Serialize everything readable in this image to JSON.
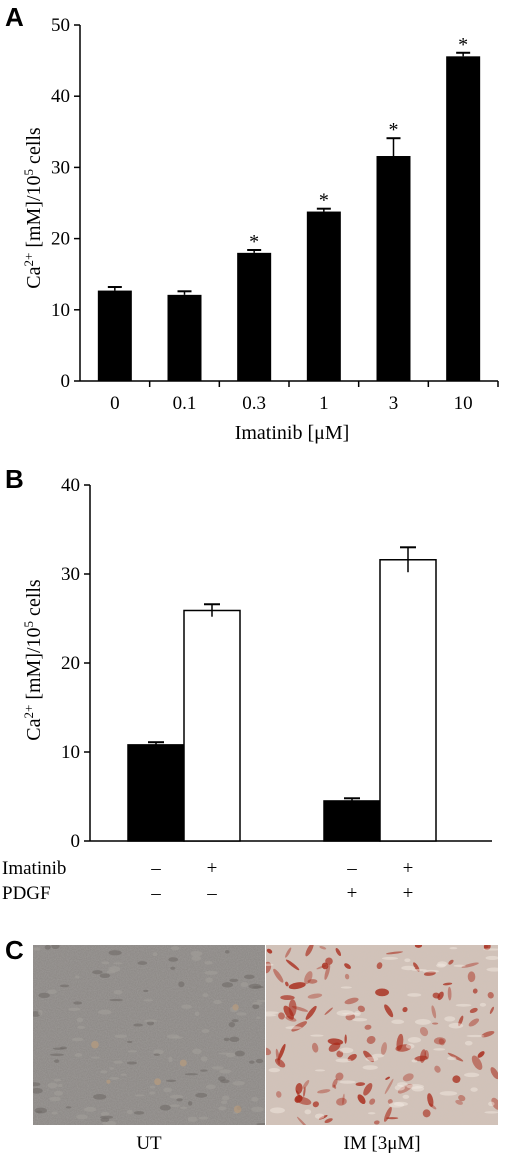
{
  "panels": [
    {
      "letter": "A"
    },
    {
      "letter": "B"
    },
    {
      "letter": "C"
    }
  ],
  "chart_data": [
    {
      "type": "bar",
      "panel": "A",
      "ylabel": "Ca2+ [mM]/105 cells",
      "xlabel": "Imatinib [μM]",
      "ylim": [
        0,
        50
      ],
      "yticks": [
        0,
        10,
        20,
        30,
        40,
        50
      ],
      "categories": [
        "0",
        "0.1",
        "0.3",
        "1",
        "3",
        "10"
      ],
      "values": [
        12.7,
        12.1,
        18.0,
        23.8,
        31.6,
        45.6
      ],
      "errors": [
        0.5,
        0.5,
        0.4,
        0.4,
        2.5,
        0.5
      ],
      "significance": [
        "",
        "",
        "*",
        "*",
        "*",
        "*"
      ],
      "bar_color": "#000000"
    },
    {
      "type": "bar",
      "panel": "B",
      "ylabel": "Ca2+ [mM]/105 cells",
      "ylim": [
        0,
        40
      ],
      "yticks": [
        0,
        10,
        20,
        30,
        40
      ],
      "groups": [
        {
          "bars": [
            {
              "value": 10.8,
              "error": 0.3,
              "fill": "#000000"
            },
            {
              "value": 25.9,
              "error": 0.7,
              "fill": "#ffffff"
            }
          ]
        },
        {
          "bars": [
            {
              "value": 4.5,
              "error": 0.3,
              "fill": "#000000"
            },
            {
              "value": 31.6,
              "error": 1.4,
              "fill": "#ffffff"
            }
          ]
        }
      ],
      "condition_rows": [
        {
          "label": "Imatinib",
          "values": [
            "–",
            "+",
            "–",
            "+"
          ]
        },
        {
          "label": "PDGF",
          "values": [
            "–",
            "–",
            "+",
            "+"
          ]
        }
      ]
    }
  ],
  "panel_c": {
    "images": [
      {
        "caption": "UT",
        "tint": "#8a8683"
      },
      {
        "caption": "IM [3μM]",
        "tint": "#d2c2b8",
        "stain": "#a82818"
      }
    ]
  }
}
